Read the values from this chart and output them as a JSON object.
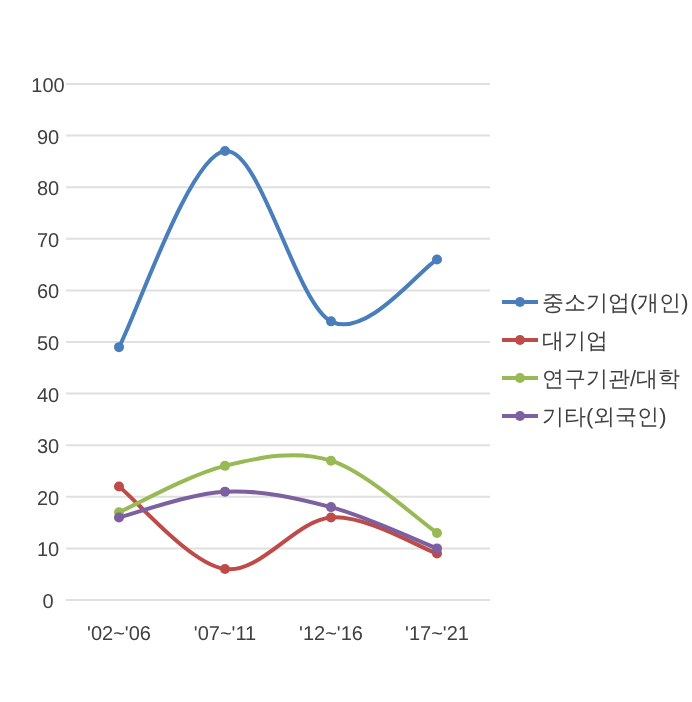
{
  "chart_data": {
    "type": "line",
    "categories": [
      "'02~'06",
      "'07~'11",
      "'12~'16",
      "'17~'21"
    ],
    "series": [
      {
        "name": "중소기업(개인)",
        "color": "#4a7ebb",
        "values": [
          49,
          87,
          54,
          66
        ]
      },
      {
        "name": "대기업",
        "color": "#be4b48",
        "values": [
          22,
          6,
          16,
          9
        ]
      },
      {
        "name": "연구기관/대학",
        "color": "#98b954",
        "values": [
          17,
          26,
          27,
          13
        ]
      },
      {
        "name": "기타(외국인)",
        "color": "#7d60a0",
        "values": [
          16,
          21,
          18,
          10
        ]
      }
    ],
    "ylim": [
      0,
      100
    ],
    "yticks": [
      0,
      10,
      20,
      30,
      40,
      50,
      60,
      70,
      80,
      90,
      100
    ],
    "grid": "y",
    "legend": "right",
    "marker": "circle",
    "line_style": "solid"
  }
}
